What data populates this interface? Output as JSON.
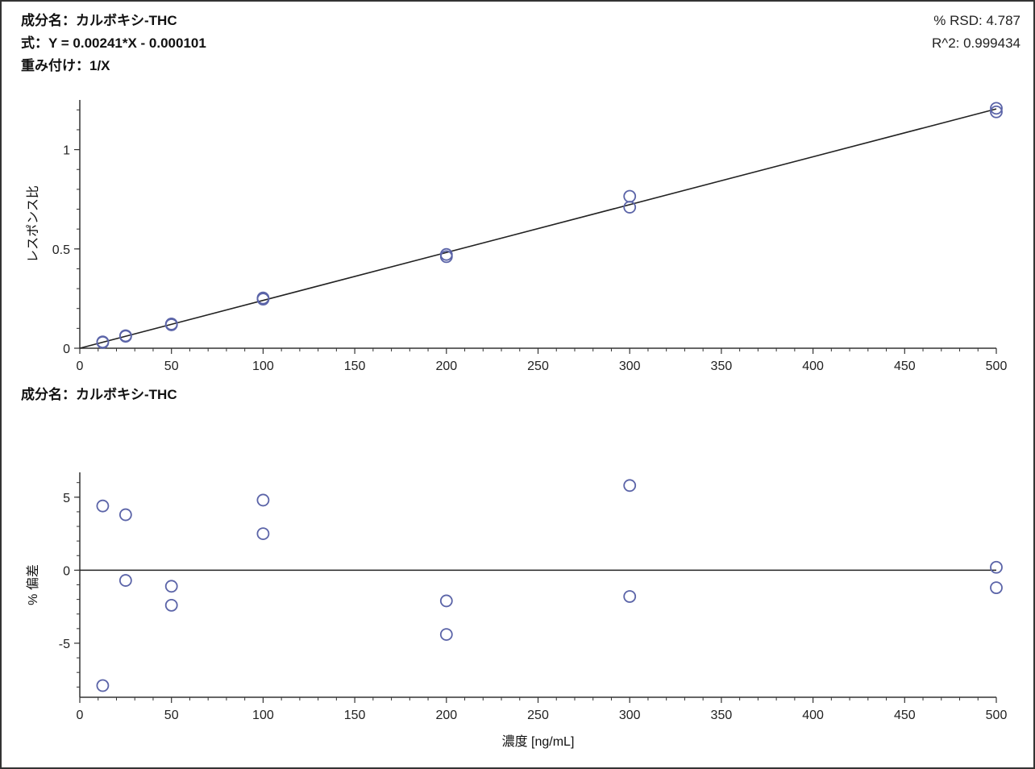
{
  "header": {
    "component_title": "成分名：カルボキシ-THC",
    "equation": "式：Y = 0.00241*X - 0.000101",
    "weighting": "重み付け：1/X",
    "rsd": "% RSD: 4.787",
    "r2": "R^2: 0.999434"
  },
  "colors": {
    "marker": "#5b64a8",
    "line": "#222222",
    "axis": "#333333"
  },
  "chart_data": [
    {
      "type": "scatter",
      "title": "",
      "xlabel": "",
      "ylabel": "レスポンス比",
      "xlim": [
        0,
        500
      ],
      "ylim": [
        0,
        1.25
      ],
      "x_ticks": [
        0,
        50,
        100,
        150,
        200,
        250,
        300,
        350,
        400,
        450,
        500
      ],
      "y_ticks": [
        0,
        0.5,
        1
      ],
      "y_tick_labels": [
        "0",
        "0.5",
        "1"
      ],
      "grid": false,
      "fit_line": {
        "slope": 0.00241,
        "intercept": -0.000101,
        "x_range": [
          0,
          500
        ]
      },
      "points": [
        {
          "x": 12.5,
          "y": 0.032
        },
        {
          "x": 12.5,
          "y": 0.029
        },
        {
          "x": 25,
          "y": 0.063
        },
        {
          "x": 25,
          "y": 0.06
        },
        {
          "x": 50,
          "y": 0.122
        },
        {
          "x": 50,
          "y": 0.118
        },
        {
          "x": 100,
          "y": 0.253
        },
        {
          "x": 100,
          "y": 0.247
        },
        {
          "x": 200,
          "y": 0.472
        },
        {
          "x": 200,
          "y": 0.461
        },
        {
          "x": 300,
          "y": 0.765
        },
        {
          "x": 300,
          "y": 0.71
        },
        {
          "x": 500,
          "y": 1.208
        },
        {
          "x": 500,
          "y": 1.19
        }
      ]
    },
    {
      "type": "scatter",
      "title": "成分名：カルボキシ-THC",
      "xlabel": "濃度 [ng/mL]",
      "ylabel": "% 偏差",
      "xlim": [
        0,
        500
      ],
      "ylim": [
        -8.7,
        6.7
      ],
      "x_ticks": [
        0,
        50,
        100,
        150,
        200,
        250,
        300,
        350,
        400,
        450,
        500
      ],
      "y_ticks": [
        -5,
        0,
        5
      ],
      "y_tick_labels": [
        "-5",
        "0",
        "5"
      ],
      "grid": false,
      "reference_line": 0,
      "points": [
        {
          "x": 12.5,
          "y": 4.4
        },
        {
          "x": 12.5,
          "y": -7.9
        },
        {
          "x": 25,
          "y": 3.8
        },
        {
          "x": 25,
          "y": -0.7
        },
        {
          "x": 50,
          "y": -1.1
        },
        {
          "x": 50,
          "y": -2.4
        },
        {
          "x": 100,
          "y": 4.8
        },
        {
          "x": 100,
          "y": 2.5
        },
        {
          "x": 200,
          "y": -2.1
        },
        {
          "x": 200,
          "y": -4.4
        },
        {
          "x": 300,
          "y": 5.8
        },
        {
          "x": 300,
          "y": -1.8
        },
        {
          "x": 500,
          "y": 0.2
        },
        {
          "x": 500,
          "y": -1.2
        }
      ]
    }
  ]
}
